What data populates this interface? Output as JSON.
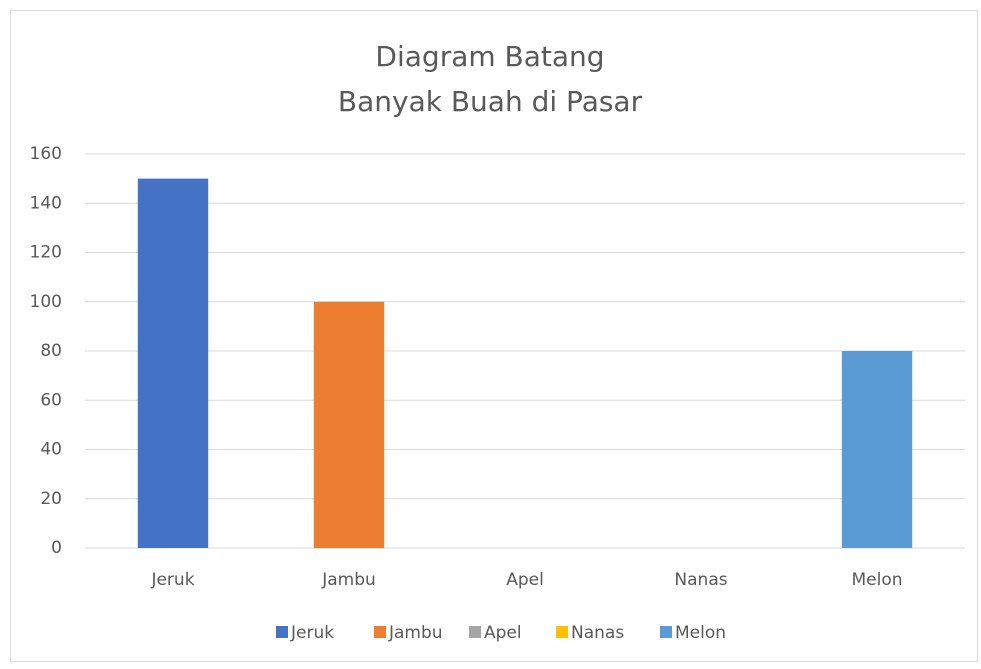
{
  "chart_data": {
    "type": "bar",
    "title": [
      "Diagram Batang",
      "Banyak Buah di Pasar"
    ],
    "categories": [
      "Jeruk",
      "Jambu",
      "Apel",
      "Nanas",
      "Melon"
    ],
    "values": [
      150,
      100,
      0,
      0,
      80
    ],
    "colors": [
      "#4472c4",
      "#ed7d31",
      "#a5a5a5",
      "#ffc000",
      "#5b9bd5"
    ],
    "ylim": [
      0,
      160
    ],
    "yticks": [
      0,
      20,
      40,
      60,
      80,
      100,
      120,
      140,
      160
    ],
    "grid": true,
    "legend": "bottom"
  }
}
